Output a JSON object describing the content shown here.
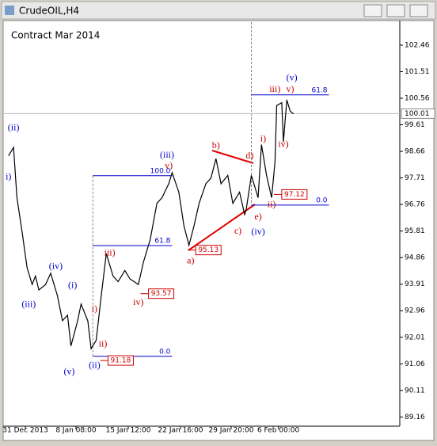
{
  "window": {
    "title": "CrudeOIL,H4"
  },
  "chart_data": {
    "type": "line",
    "title": "Contract Mar 2014",
    "color": "#000000",
    "x": [
      -10,
      -7,
      -5,
      -2,
      1,
      4,
      6,
      8,
      12,
      15,
      19,
      22,
      25,
      27,
      31,
      33,
      37,
      39,
      42,
      45,
      48,
      52,
      55,
      59,
      62,
      67,
      70,
      74,
      78,
      81,
      85,
      87,
      91,
      94,
      97,
      100,
      103,
      107,
      110,
      113,
      116,
      120,
      123,
      127,
      130,
      131,
      134,
      136,
      138,
      140,
      143,
      146,
      148,
      149,
      152,
      153,
      155,
      157,
      159
    ],
    "values": [
      98.5,
      98.8,
      97.0,
      95.8,
      94.5,
      93.9,
      94.2,
      93.7,
      93.9,
      94.3,
      93.5,
      92.6,
      92.8,
      91.7,
      92.6,
      93.2,
      92.6,
      91.6,
      91.9,
      93.5,
      95.0,
      94.2,
      94.0,
      94.4,
      94.1,
      93.9,
      94.7,
      95.5,
      96.8,
      97.0,
      97.5,
      97.9,
      97.2,
      96.0,
      95.3,
      96.0,
      96.8,
      97.5,
      97.7,
      98.4,
      97.5,
      97.8,
      96.8,
      97.2,
      96.4,
      96.6,
      97.8,
      97.4,
      97.0,
      98.9,
      97.8,
      97.0,
      98.3,
      100.3,
      100.4,
      99.0,
      100.5,
      100.1,
      100.0
    ],
    "xlim": [
      -12.7,
      222
    ],
    "ylim": [
      88.83,
      103.28
    ],
    "xticks": [
      {
        "value": 0,
        "label": "31 Dec 2013"
      },
      {
        "value": 30,
        "label": "8 Jan 08:00"
      },
      {
        "value": 61,
        "label": "15 Jan 12:00"
      },
      {
        "value": 92,
        "label": "22 Jan 16:00"
      },
      {
        "value": 122,
        "label": "29 Jan 20:00"
      },
      {
        "value": 150,
        "label": "6 Feb 00:00"
      }
    ],
    "yticks": [
      102.46,
      101.51,
      100.56,
      99.61,
      98.66,
      97.71,
      96.76,
      95.81,
      94.86,
      93.91,
      92.96,
      92.01,
      91.06,
      90.11,
      89.16
    ],
    "last_price": 100.01,
    "annotations": [
      {
        "text": "(ii)",
        "x": -7,
        "y": 99.49,
        "color": "#0000cc"
      },
      {
        "text": "i)",
        "x": -10,
        "y": 97.73,
        "color": "#0000cc"
      },
      {
        "text": "(iv)",
        "x": 18,
        "y": 94.53,
        "color": "#0000cc"
      },
      {
        "text": "(i)",
        "x": 28,
        "y": 93.85,
        "color": "#0000cc"
      },
      {
        "text": "(iii)",
        "x": 2,
        "y": 93.17,
        "color": "#0000cc"
      },
      {
        "text": "(v)",
        "x": 26,
        "y": 90.76,
        "color": "#0000cc"
      },
      {
        "text": "(ii)",
        "x": 41,
        "y": 90.99,
        "color": "#0000cc"
      },
      {
        "text": "(iii)",
        "x": 84,
        "y": 98.52,
        "color": "#0000cc"
      },
      {
        "text": "(iv)",
        "x": 138,
        "y": 95.77,
        "color": "#0000cc"
      },
      {
        "text": "(v)",
        "x": 158,
        "y": 101.27,
        "color": "#0000cc"
      },
      {
        "text": "v)",
        "x": 85,
        "y": 98.13,
        "color": "#cc0000"
      },
      {
        "text": "iii)",
        "x": 50,
        "y": 95.01,
        "color": "#cc0000"
      },
      {
        "text": "i)",
        "x": 41,
        "y": 93.0,
        "color": "#cc0000"
      },
      {
        "text": "ii)",
        "x": 46,
        "y": 91.75,
        "color": "#cc0000"
      },
      {
        "text": "iv)",
        "x": 67,
        "y": 93.25,
        "color": "#cc0000"
      },
      {
        "text": "a)",
        "x": 98,
        "y": 94.73,
        "color": "#cc0000"
      },
      {
        "text": "b)",
        "x": 113,
        "y": 98.86,
        "color": "#cc0000"
      },
      {
        "text": "c)",
        "x": 126,
        "y": 95.8,
        "color": "#cc0000"
      },
      {
        "text": "d)",
        "x": 133,
        "y": 98.49,
        "color": "#cc0000"
      },
      {
        "text": "e)",
        "x": 138,
        "y": 96.31,
        "color": "#cc0000"
      },
      {
        "text": "i)",
        "x": 141,
        "y": 99.09,
        "color": "#cc0000"
      },
      {
        "text": "ii)",
        "x": 146,
        "y": 96.74,
        "color": "#cc0000"
      },
      {
        "text": "iii)",
        "x": 148,
        "y": 100.87,
        "color": "#cc0000"
      },
      {
        "text": "v)",
        "x": 157,
        "y": 100.87,
        "color": "#cc0000"
      },
      {
        "text": "iv)",
        "x": 153,
        "y": 98.89,
        "color": "#cc0000"
      }
    ],
    "fib_levels": [
      {
        "label": "100.0",
        "price": 97.79,
        "x0": 40,
        "x1": 87
      },
      {
        "label": "61.8",
        "price": 95.29,
        "x0": 40,
        "x1": 87
      },
      {
        "label": "0.0",
        "price": 91.33,
        "x0": 40,
        "x1": 87
      },
      {
        "label": "61.8",
        "price": 100.68,
        "x0": 134,
        "x1": 180
      },
      {
        "label": "0.0",
        "price": 96.74,
        "x0": 134,
        "x1": 180
      }
    ],
    "price_marks": [
      {
        "value": 91.18,
        "x": 49
      },
      {
        "value": 93.57,
        "x": 73
      },
      {
        "value": 95.13,
        "x": 101
      },
      {
        "value": 97.12,
        "x": 152
      }
    ]
  }
}
